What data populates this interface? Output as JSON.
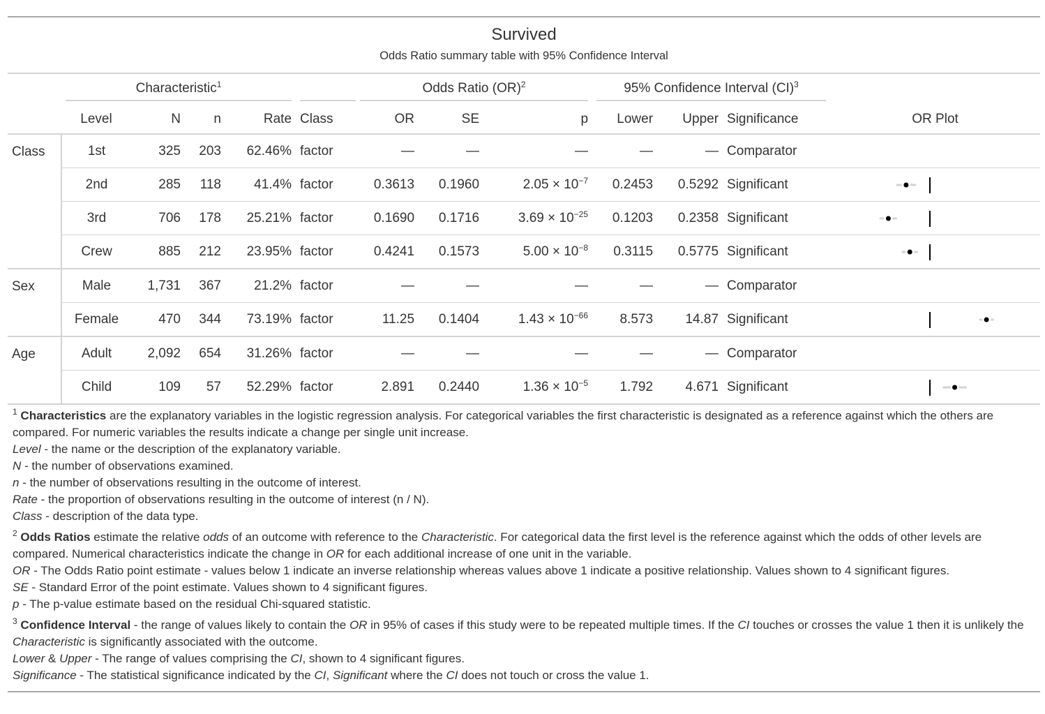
{
  "title": "Survived",
  "subtitle": "Odds Ratio summary table with 95% Confidence Interval",
  "spanners": {
    "characteristic": "Characteristic",
    "characteristic_sup": "1",
    "odds": "Odds Ratio (OR)",
    "odds_sup": "2",
    "ci": "95% Confidence Interval (CI)",
    "ci_sup": "3"
  },
  "columns": [
    "Level",
    "N",
    "n",
    "Rate",
    "Class",
    "OR",
    "SE",
    "p",
    "Lower",
    "Upper",
    "Significance",
    "OR Plot"
  ],
  "groups": [
    {
      "name": "Class",
      "rows": [
        {
          "level": "1st",
          "N": "325",
          "n": "203",
          "rate": "62.46%",
          "class": "factor",
          "or": "—",
          "se": "—",
          "p": "—",
          "lower": "—",
          "upper": "—",
          "sig": "Comparator"
        },
        {
          "level": "2nd",
          "N": "285",
          "n": "118",
          "rate": "41.4%",
          "class": "factor",
          "or": "0.3613",
          "se": "0.1960",
          "p_m": "2.05",
          "p_e": "−7",
          "lower": "0.2453",
          "upper": "0.5292",
          "sig": "Significant"
        },
        {
          "level": "3rd",
          "N": "706",
          "n": "178",
          "rate": "25.21%",
          "class": "factor",
          "or": "0.1690",
          "se": "0.1716",
          "p_m": "3.69",
          "p_e": "−25",
          "lower": "0.1203",
          "upper": "0.2358",
          "sig": "Significant"
        },
        {
          "level": "Crew",
          "N": "885",
          "n": "212",
          "rate": "23.95%",
          "class": "factor",
          "or": "0.4241",
          "se": "0.1573",
          "p_m": "5.00",
          "p_e": "−8",
          "lower": "0.3115",
          "upper": "0.5775",
          "sig": "Significant"
        }
      ]
    },
    {
      "name": "Sex",
      "rows": [
        {
          "level": "Male",
          "N": "1,731",
          "n": "367",
          "rate": "21.2%",
          "class": "factor",
          "or": "—",
          "se": "—",
          "p": "—",
          "lower": "—",
          "upper": "—",
          "sig": "Comparator"
        },
        {
          "level": "Female",
          "N": "470",
          "n": "344",
          "rate": "73.19%",
          "class": "factor",
          "or": "11.25",
          "se": "0.1404",
          "p_m": "1.43",
          "p_e": "−66",
          "lower": "8.573",
          "upper": "14.87",
          "sig": "Significant"
        }
      ]
    },
    {
      "name": "Age",
      "rows": [
        {
          "level": "Adult",
          "N": "2,092",
          "n": "654",
          "rate": "31.26%",
          "class": "factor",
          "or": "—",
          "se": "—",
          "p": "—",
          "lower": "—",
          "upper": "—",
          "sig": "Comparator"
        },
        {
          "level": "Child",
          "N": "109",
          "n": "57",
          "rate": "52.29%",
          "class": "factor",
          "or": "2.891",
          "se": "0.2440",
          "p_m": "1.36",
          "p_e": "−5",
          "lower": "1.792",
          "upper": "4.671",
          "sig": "Significant"
        }
      ]
    }
  ],
  "plot": {
    "scale": "log",
    "reference": 1,
    "point_color": "#000000",
    "ci_color": "#d3d3d3"
  },
  "footnotes": [
    {
      "sup": "1",
      "html": "<b>Characteristics</b> are the explanatory variables in the logistic regression analysis. For categorical variables the first characteristic is designated as a reference against which the others are compared. For numeric variables the results indicate a change per single unit increase.<br><i>Level</i> - the name or the description of the explanatory variable.<br><i>N</i> - the number of observations examined.<br><i>n</i> - the number of observations resulting in the outcome of interest.<br><i>Rate</i> - the proportion of observations resulting in the outcome of interest (n / N).<br><i>Class</i> - description of the data type."
    },
    {
      "sup": "2",
      "html": "<b>Odds Ratios</b> estimate the relative <i>odds</i> of an outcome with reference to the <i>Characteristic</i>. For categorical data the first level is the reference against which the odds of other levels are compared. Numerical characteristics indicate the change in <i>OR</i> for each additional increase of one unit in the variable.<br><i>OR</i> - The Odds Ratio point estimate - values below 1 indicate an inverse relationship whereas values above 1 indicate a positive relationship. Values shown to 4 significant figures.<br><i>SE</i> - Standard Error of the point estimate. Values shown to 4 significant figures.<br><i>p</i> - The p-value estimate based on the residual Chi-squared statistic."
    },
    {
      "sup": "3",
      "html": "<b>Confidence Interval</b> - the range of values likely to contain the <i>OR</i> in 95% of cases if this study were to be repeated multiple times. If the <i>CI</i> touches or crosses the value 1 then it is unlikely the <i>Characteristic</i> is significantly associated with the outcome.<br><i>Lower</i> &amp; <i>Upper</i> - The range of values comprising the <i>CI</i>, shown to 4 significant figures.<br><i>Significance</i> - The statistical significance indicated by the <i>CI</i>, <i>Significant</i> where the <i>CI</i> does not touch or cross the value 1."
    }
  ]
}
